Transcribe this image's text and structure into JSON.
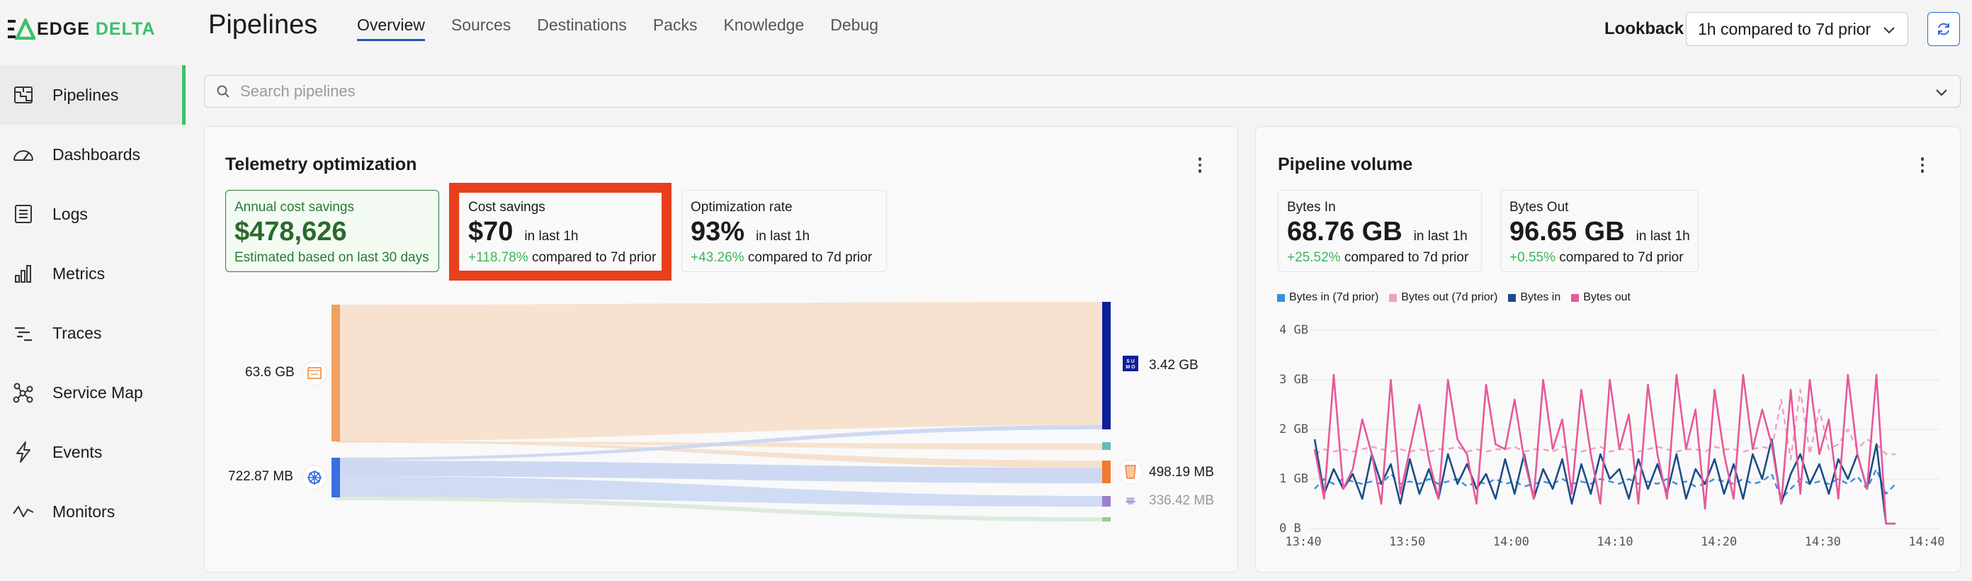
{
  "app": {
    "logo_word1": "EDGE",
    "logo_word2": "DELTA",
    "brand_color": "#3cc06b"
  },
  "header": {
    "title": "Pipelines",
    "tabs": [
      {
        "label": "Overview",
        "active": true
      },
      {
        "label": "Sources"
      },
      {
        "label": "Destinations"
      },
      {
        "label": "Packs"
      },
      {
        "label": "Knowledge"
      },
      {
        "label": "Debug"
      }
    ],
    "lookback_label": "Lookback",
    "lookback_value": "1h compared to 7d prior"
  },
  "sidebar": {
    "items": [
      {
        "label": "Pipelines",
        "icon": "pipelines-icon",
        "active": true
      },
      {
        "label": "Dashboards",
        "icon": "dashboard-gauge-icon"
      },
      {
        "label": "Logs",
        "icon": "logs-icon"
      },
      {
        "label": "Metrics",
        "icon": "bar-chart-icon"
      },
      {
        "label": "Traces",
        "icon": "traces-icon"
      },
      {
        "label": "Service Map",
        "icon": "service-map-icon"
      },
      {
        "label": "Events",
        "icon": "lightning-icon"
      },
      {
        "label": "Monitors",
        "icon": "pulse-icon"
      }
    ]
  },
  "search": {
    "placeholder": "Search pipelines"
  },
  "telemetry": {
    "title": "Telemetry optimization",
    "annual": {
      "label": "Annual cost savings",
      "value": "$478,626",
      "sub": "Estimated based on last 30 days"
    },
    "cost": {
      "label": "Cost savings",
      "value": "$70",
      "suffix": "in last 1h",
      "pct": "+118.78%",
      "compare": "compared to 7d prior"
    },
    "rate": {
      "label": "Optimization rate",
      "value": "93%",
      "suffix": "in last 1h",
      "pct": "+43.26%",
      "compare": "compared to 7d prior"
    },
    "flows": {
      "sources": [
        {
          "label": "63.6 GB",
          "icon": "file-source-icon",
          "color": "#f0a060"
        },
        {
          "label": "722.87 MB",
          "icon": "kubernetes-icon",
          "color": "#3b6fe0"
        }
      ],
      "destinations": [
        {
          "label": "3.42 GB",
          "icon": "sumo-logic-icon",
          "color": "#0b1f9a"
        },
        {
          "label": "498.19 MB",
          "icon": "s3-bucket-icon",
          "color": "#f07a30"
        },
        {
          "label": "336.42 MB",
          "icon": "splunk-icon",
          "color": "#9c7fce"
        }
      ]
    }
  },
  "volume": {
    "title": "Pipeline volume",
    "bytes_in": {
      "label": "Bytes In",
      "value": "68.76 GB",
      "suffix": "in last 1h",
      "pct": "+25.52%",
      "compare": "compared to 7d prior"
    },
    "bytes_out": {
      "label": "Bytes Out",
      "value": "96.65 GB",
      "suffix": "in last 1h",
      "pct": "+0.55%",
      "compare": "compared to 7d prior"
    }
  },
  "chart_data": {
    "type": "line",
    "title": "",
    "xlabel": "",
    "ylabel": "",
    "y_ticks": [
      "0 B",
      "1 GB",
      "2 GB",
      "3 GB",
      "4 GB"
    ],
    "x_ticks": [
      "13:40",
      "13:50",
      "14:00",
      "14:10",
      "14:20",
      "14:30",
      "14:40"
    ],
    "ylim": [
      0,
      4
    ],
    "grid": true,
    "legend_position": "top-left",
    "series": [
      {
        "name": "Bytes in (7d prior)",
        "color": "#3a8de0",
        "dashed": true,
        "values": [
          0.8,
          1.0,
          0.9,
          1.0,
          0.95,
          0.9,
          0.95,
          0.9,
          1.1,
          0.9,
          0.95,
          0.9,
          1.0,
          0.9,
          0.95,
          1.0,
          0.85,
          0.95,
          0.9,
          1.0,
          0.9,
          0.95,
          0.85,
          0.9,
          0.95,
          0.9,
          1.0,
          0.9,
          0.95,
          0.9,
          1.0,
          0.95,
          0.9,
          1.0,
          0.9,
          0.95,
          0.9,
          1.0,
          0.9,
          0.95,
          0.85,
          0.9,
          1.0,
          0.95,
          0.9,
          1.0,
          0.9,
          0.95,
          1.1,
          0.6,
          0.8,
          1.0,
          0.9,
          0.95,
          0.9,
          1.0,
          0.9,
          1.05,
          0.8,
          1.2,
          0.7,
          0.9
        ]
      },
      {
        "name": "Bytes out (7d prior)",
        "color": "#f0a0c0",
        "dashed": true,
        "values": [
          1.5,
          1.6,
          1.55,
          1.6,
          1.55,
          1.6,
          1.65,
          1.6,
          1.55,
          1.6,
          1.55,
          1.6,
          1.55,
          1.6,
          1.6,
          1.65,
          1.55,
          1.6,
          1.55,
          1.6,
          1.6,
          1.65,
          1.55,
          1.6,
          1.6,
          1.55,
          1.65,
          1.6,
          1.55,
          1.6,
          1.65,
          1.55,
          1.6,
          1.6,
          1.55,
          1.6,
          1.65,
          1.6,
          1.55,
          1.6,
          1.6,
          1.55,
          1.65,
          1.6,
          1.6,
          1.55,
          1.6,
          1.65,
          1.6,
          2.6,
          1.4,
          2.8,
          1.5,
          2.4,
          1.6,
          1.7,
          2.0,
          1.6,
          1.8,
          1.7,
          1.5,
          1.5
        ]
      },
      {
        "name": "Bytes in",
        "color": "#1c4c88",
        "dashed": false,
        "values": [
          1.8,
          0.7,
          1.2,
          0.8,
          1.1,
          0.6,
          1.5,
          0.9,
          1.3,
          0.5,
          1.4,
          0.7,
          1.2,
          0.6,
          1.5,
          0.9,
          1.3,
          0.8,
          1.1,
          0.6,
          1.4,
          0.7,
          1.5,
          0.6,
          1.2,
          0.8,
          1.4,
          0.5,
          1.3,
          0.7,
          1.5,
          1.0,
          1.2,
          0.6,
          1.4,
          0.8,
          1.3,
          0.7,
          1.5,
          0.6,
          1.2,
          0.9,
          1.4,
          0.7,
          1.3,
          0.6,
          1.5,
          1.0,
          1.8,
          0.5,
          1.1,
          1.5,
          0.9,
          1.3,
          0.7,
          1.4,
          1.0,
          1.5,
          0.8,
          1.7,
          0.1,
          0.1
        ]
      },
      {
        "name": "Bytes out",
        "color": "#e8589a",
        "dashed": false,
        "values": [
          1.6,
          0.6,
          3.1,
          0.8,
          1.2,
          2.2,
          1.5,
          0.5,
          3.0,
          0.7,
          1.6,
          2.5,
          1.4,
          0.6,
          3.0,
          1.8,
          1.5,
          0.5,
          2.9,
          1.7,
          1.6,
          2.6,
          1.4,
          0.6,
          3.0,
          1.6,
          2.2,
          0.7,
          2.8,
          1.5,
          0.5,
          3.0,
          1.6,
          2.3,
          0.5,
          2.9,
          1.5,
          0.6,
          3.1,
          1.6,
          2.4,
          0.4,
          2.8,
          1.5,
          0.6,
          3.1,
          1.6,
          2.4,
          1.7,
          0.5,
          2.8,
          0.7,
          3.0,
          1.5,
          2.2,
          0.6,
          3.1,
          1.5,
          0.8,
          3.1,
          0.1,
          0.1
        ]
      }
    ]
  }
}
